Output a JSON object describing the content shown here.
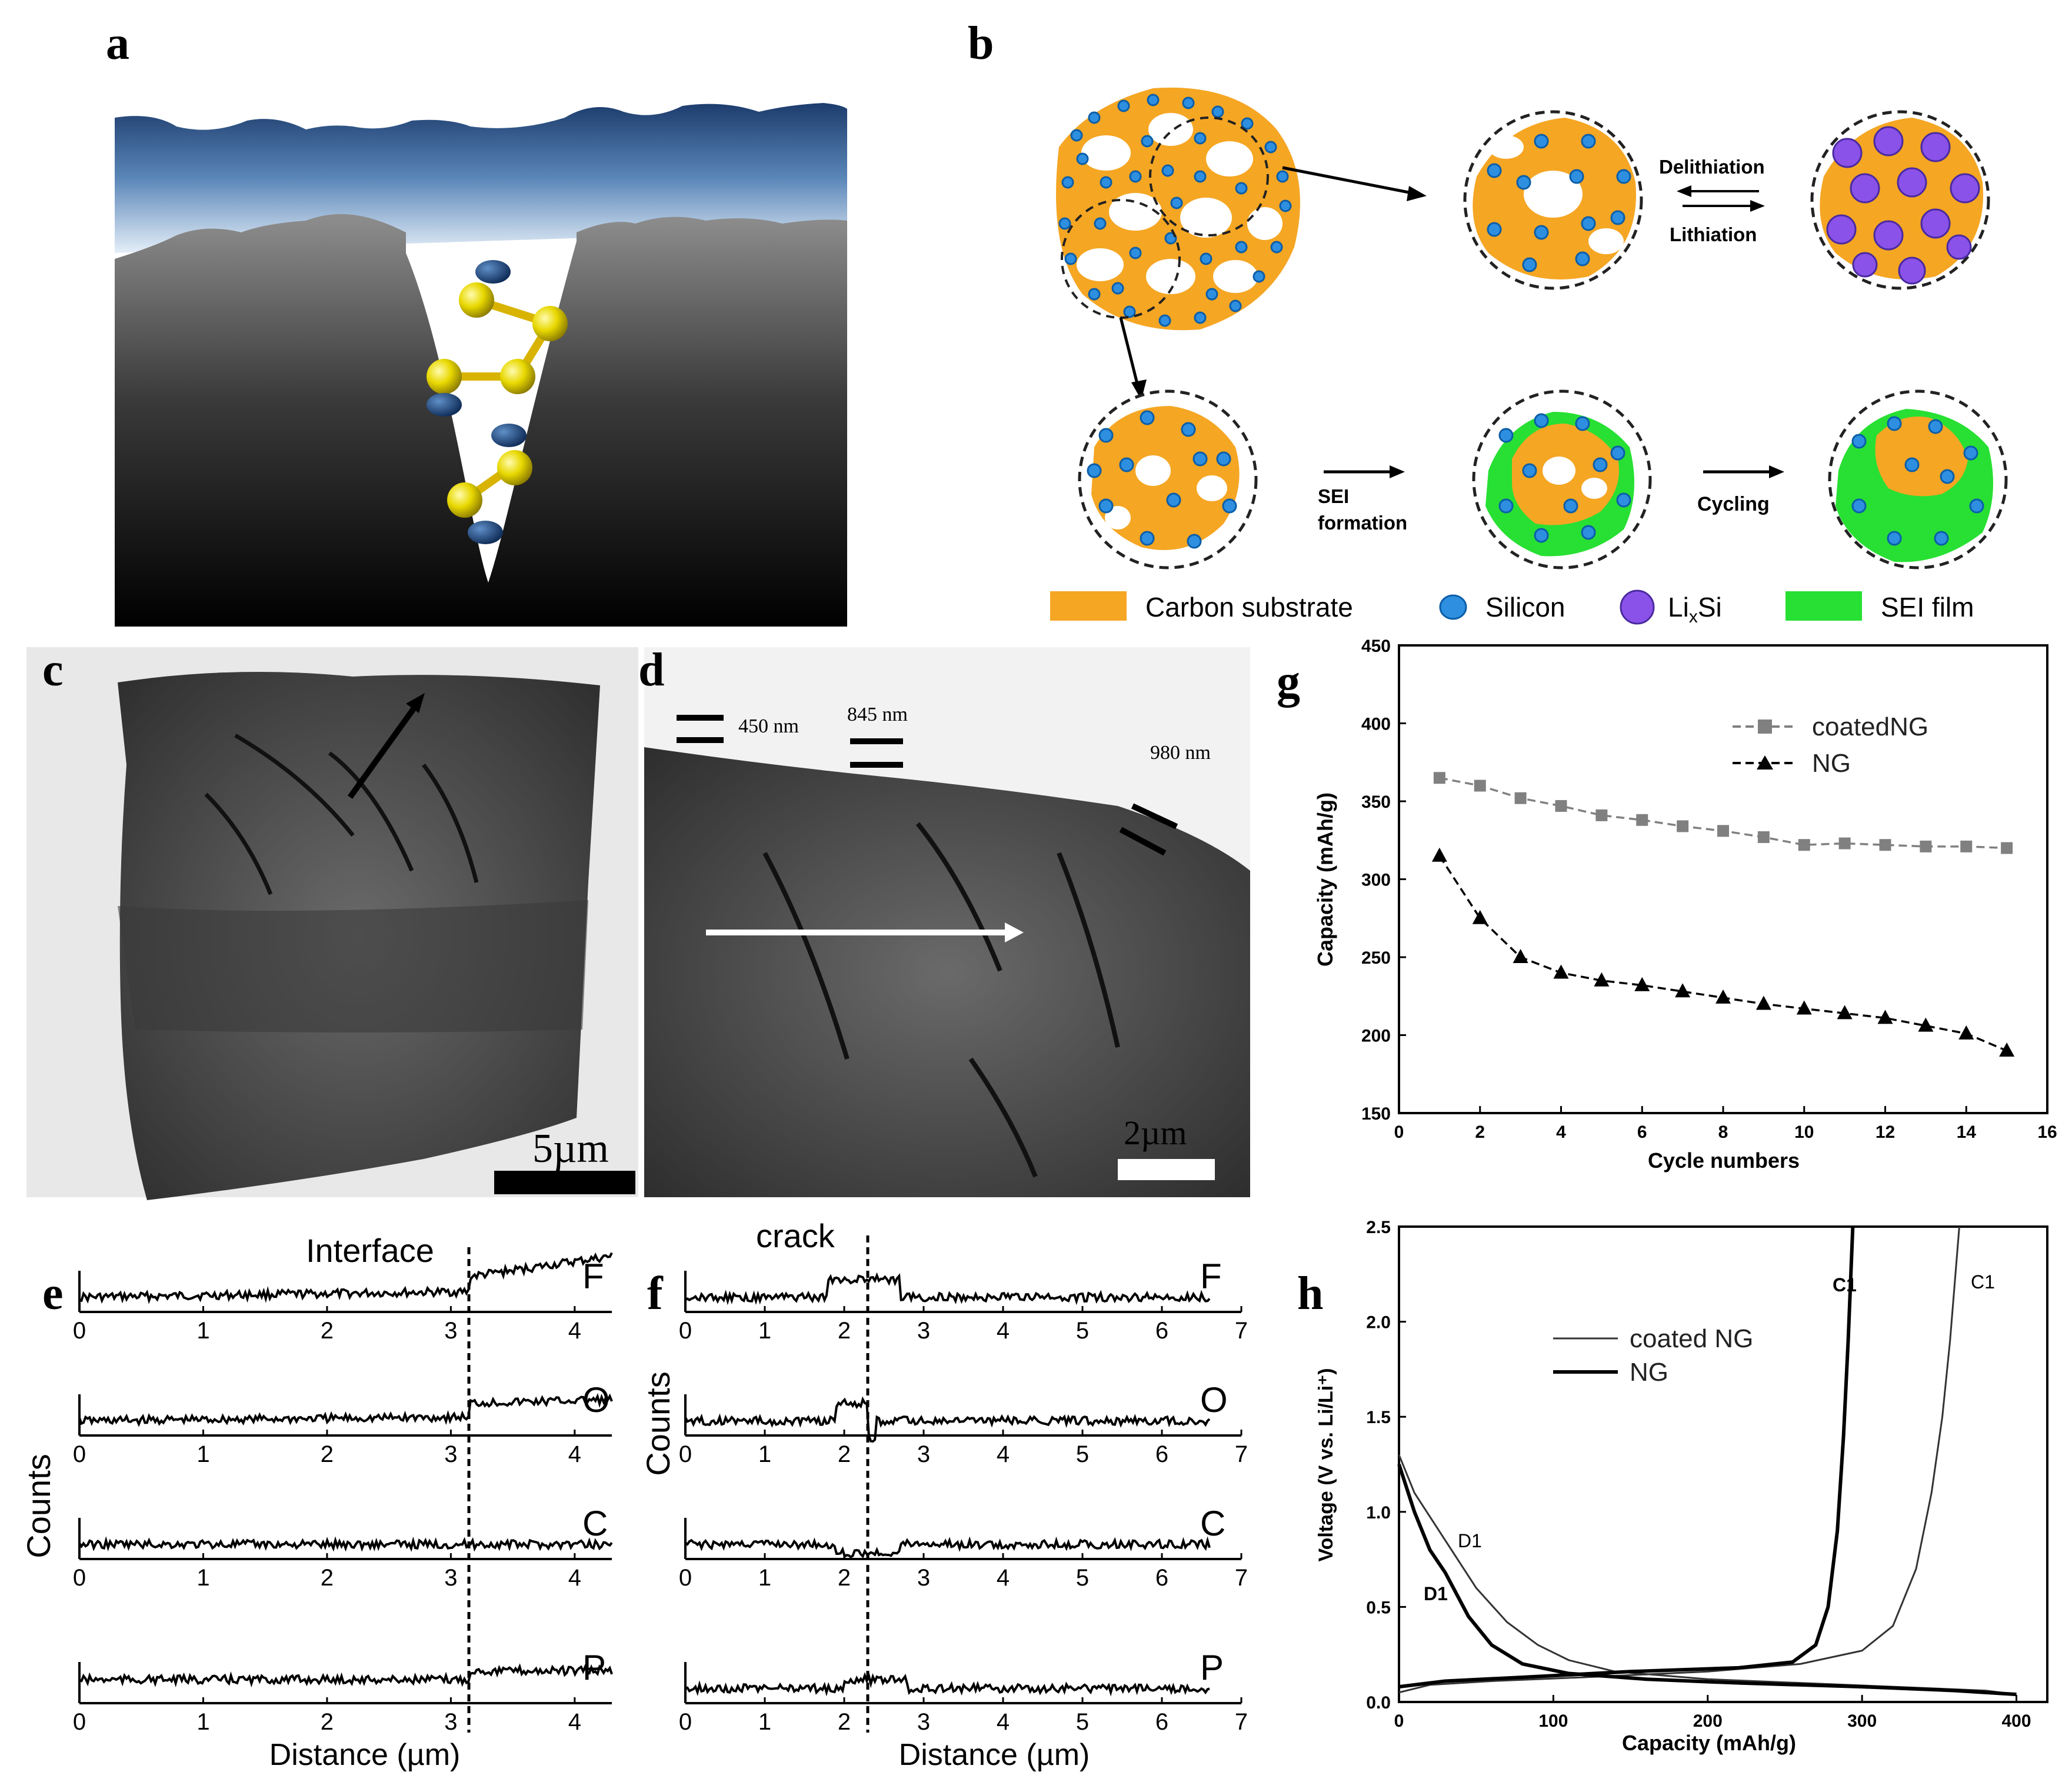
{
  "panels": {
    "a": "a",
    "b": "b",
    "c": "c",
    "d": "d",
    "e": "e",
    "f": "f",
    "g": "g",
    "h": "h"
  },
  "panel_b": {
    "arrow_top_upper": "Delithiation",
    "arrow_top_lower": "Lithiation",
    "arrow_sei_1": "SEI",
    "arrow_sei_2": "formation",
    "arrow_cycling": "Cycling",
    "legend": [
      {
        "label": "Carbon substrate",
        "color": "#f5a623"
      },
      {
        "label": "Silicon",
        "color": "#2e8fe0"
      },
      {
        "label": "Li",
        "sub": "x",
        "suffix": "Si",
        "color": "#8a52e8"
      },
      {
        "label": "SEI film",
        "color": "#27e033"
      }
    ]
  },
  "panel_c": {
    "scale_bar": "5µm"
  },
  "panel_d": {
    "scale_bar": "2µm",
    "thickness_1": "450 nm",
    "thickness_2": "845 nm",
    "thickness_3": "980 nm"
  },
  "panel_e": {
    "annotation": "Interface",
    "ylabel": "Counts",
    "xlabel": "Distance (µm)",
    "elements": [
      "F",
      "O",
      "C",
      "P"
    ],
    "xticks": [
      "0",
      "1",
      "2",
      "3",
      "4"
    ]
  },
  "panel_f": {
    "annotation": "crack",
    "ylabel": "Counts",
    "xlabel": "Distance (µm)",
    "elements": [
      "F",
      "O",
      "C",
      "P"
    ],
    "xticks": [
      "0",
      "1",
      "2",
      "3",
      "4",
      "5",
      "6",
      "7"
    ]
  },
  "colors": {
    "carbon": "#f5a623",
    "silicon": "#2e8fe0",
    "lixsi": "#8a52e8",
    "sei": "#27e033"
  },
  "chart_data": [
    {
      "type": "line",
      "panel": "g",
      "xlabel": "Cycle numbers",
      "ylabel": "Capacity (mAh/g)",
      "xlim": [
        0,
        16
      ],
      "ylim": [
        150,
        450
      ],
      "xticks": [
        0,
        2,
        4,
        6,
        8,
        10,
        12,
        14,
        16
      ],
      "yticks": [
        150,
        200,
        250,
        300,
        350,
        400,
        450
      ],
      "x": [
        1,
        2,
        3,
        4,
        5,
        6,
        7,
        8,
        9,
        10,
        11,
        12,
        13,
        14,
        15
      ],
      "series": [
        {
          "name": "coatedNG",
          "marker": "square",
          "color": "#808080",
          "values": [
            365,
            360,
            352,
            347,
            341,
            338,
            334,
            331,
            327,
            322,
            323,
            322,
            321,
            321,
            320
          ]
        },
        {
          "name": "NG",
          "marker": "triangle",
          "color": "#000000",
          "values": [
            315,
            275,
            250,
            240,
            235,
            232,
            228,
            224,
            220,
            217,
            214,
            211,
            206,
            201,
            190
          ]
        }
      ]
    },
    {
      "type": "line",
      "panel": "h",
      "xlabel": "Capacity (mAh/g)",
      "ylabel": "Voltage (V vs. Li/Li⁺)",
      "xlim": [
        0,
        420
      ],
      "ylim": [
        0,
        2.5
      ],
      "xticks": [
        0,
        100,
        200,
        300,
        400
      ],
      "yticks": [
        "0.0",
        "0.5",
        "1.0",
        "1.5",
        "2.0",
        "2.5"
      ],
      "annotations": [
        "C1",
        "C1",
        "D1",
        "D1"
      ],
      "series": [
        {
          "name": "coated NG",
          "segment": "D1",
          "points": [
            [
              0,
              1.3
            ],
            [
              10,
              1.1
            ],
            [
              30,
              0.85
            ],
            [
              50,
              0.6
            ],
            [
              70,
              0.42
            ],
            [
              90,
              0.3
            ],
            [
              110,
              0.22
            ],
            [
              140,
              0.16
            ],
            [
              200,
              0.12
            ],
            [
              260,
              0.1
            ],
            [
              320,
              0.08
            ],
            [
              380,
              0.06
            ],
            [
              400,
              0.04
            ]
          ]
        },
        {
          "name": "coated NG",
          "segment": "C1",
          "points": [
            [
              0,
              0.05
            ],
            [
              20,
              0.09
            ],
            [
              60,
              0.11
            ],
            [
              120,
              0.13
            ],
            [
              200,
              0.16
            ],
            [
              260,
              0.2
            ],
            [
              300,
              0.27
            ],
            [
              320,
              0.4
            ],
            [
              335,
              0.7
            ],
            [
              345,
              1.1
            ],
            [
              352,
              1.5
            ],
            [
              357,
              1.9
            ],
            [
              361,
              2.3
            ],
            [
              363,
              2.5
            ]
          ]
        },
        {
          "name": "NG",
          "segment": "D1",
          "points": [
            [
              0,
              1.25
            ],
            [
              10,
              1.0
            ],
            [
              20,
              0.8
            ],
            [
              30,
              0.68
            ],
            [
              45,
              0.45
            ],
            [
              60,
              0.3
            ],
            [
              80,
              0.2
            ],
            [
              110,
              0.15
            ],
            [
              160,
              0.12
            ],
            [
              220,
              0.1
            ],
            [
              300,
              0.08
            ],
            [
              360,
              0.06
            ],
            [
              400,
              0.04
            ]
          ]
        },
        {
          "name": "NG",
          "segment": "C1",
          "points": [
            [
              0,
              0.08
            ],
            [
              30,
              0.11
            ],
            [
              80,
              0.13
            ],
            [
              150,
              0.16
            ],
            [
              220,
              0.18
            ],
            [
              255,
              0.21
            ],
            [
              270,
              0.3
            ],
            [
              278,
              0.5
            ],
            [
              284,
              0.9
            ],
            [
              288,
              1.4
            ],
            [
              291,
              1.9
            ],
            [
              293,
              2.3
            ],
            [
              294,
              2.5
            ]
          ]
        }
      ]
    }
  ]
}
